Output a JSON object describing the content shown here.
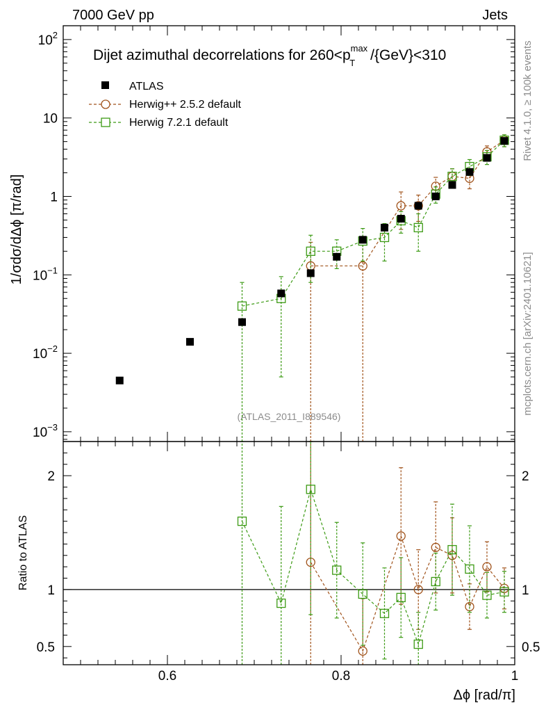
{
  "header": {
    "left": "7000 GeV pp",
    "right": "Jets"
  },
  "side_labels": {
    "rivet": "Rivet 4.1.0, ≥ 100k events",
    "mcplots": "mcplots.cern.ch [arXiv:2401.10621]"
  },
  "colors": {
    "data": "#000000",
    "herwigpp": "#a0521a",
    "herwig7": "#3c9a14",
    "watermark": "#8c8c8c"
  },
  "chart_data": [
    {
      "type": "scatter",
      "panel": "main",
      "title_parts": {
        "prefix": "Dijet azimuthal decorrelations for 260<p",
        "sup": "max",
        "sub": "T",
        "suffix": "/{GeV}<310"
      },
      "ylabel": "1/σdσ/dΔϕ [π/rad]",
      "yscale": "log",
      "ylim": [
        0.00075,
        150
      ],
      "xlim": [
        0.48,
        1.0
      ],
      "yticks": [
        {
          "v": 0.001,
          "label": "10",
          "exp": "−3"
        },
        {
          "v": 0.01,
          "label": "10",
          "exp": "−2"
        },
        {
          "v": 0.1,
          "label": "10",
          "exp": "−1"
        },
        {
          "v": 1,
          "label": "1",
          "exp": ""
        },
        {
          "v": 10,
          "label": "10",
          "exp": ""
        },
        {
          "v": 100,
          "label": "10",
          "exp": "2"
        }
      ],
      "watermark": "(ATLAS_2011_I889546)",
      "legend": [
        "ATLAS",
        "Herwig++ 2.5.2 default",
        "Herwig 7.2.1 default"
      ],
      "legend_position": "top-left",
      "series": [
        {
          "name": "ATLAS",
          "style": "data",
          "color": "#000000",
          "x": [
            0.545,
            0.626,
            0.686,
            0.731,
            0.765,
            0.795,
            0.825,
            0.85,
            0.869,
            0.889,
            0.909,
            0.928,
            0.948,
            0.968,
            0.988
          ],
          "y": [
            0.0045,
            0.014,
            0.025,
            0.058,
            0.105,
            0.17,
            0.28,
            0.4,
            0.52,
            0.76,
            1.0,
            1.4,
            2.05,
            3.1,
            5.1
          ],
          "err": [
            0,
            0,
            0,
            0,
            0,
            0,
            0,
            0,
            0,
            0,
            0,
            0,
            0,
            0,
            0
          ]
        },
        {
          "name": "Herwig++ 2.5.2 default",
          "style": "circle",
          "color": "#a0521a",
          "x": [
            0.765,
            0.825,
            0.869,
            0.889,
            0.909,
            0.928,
            0.948,
            0.968,
            0.988
          ],
          "y": [
            0.13,
            0.13,
            0.76,
            0.76,
            1.35,
            1.8,
            1.7,
            3.7,
            5.2
          ],
          "err": [
            0.13,
            0.13,
            0.38,
            0.28,
            0.4,
            0.45,
            0.45,
            0.7,
            0.9
          ]
        },
        {
          "name": "Herwig 7.2.1 default",
          "style": "square",
          "color": "#3c9a14",
          "x": [
            0.686,
            0.731,
            0.765,
            0.795,
            0.825,
            0.85,
            0.869,
            0.889,
            0.909,
            0.928,
            0.948,
            0.968,
            0.988
          ],
          "y": [
            0.04,
            0.05,
            0.2,
            0.2,
            0.27,
            0.3,
            0.49,
            0.4,
            1.07,
            1.8,
            2.4,
            3.2,
            5.2
          ],
          "err": [
            0.04,
            0.045,
            0.12,
            0.08,
            0.12,
            0.15,
            0.15,
            0.2,
            0.25,
            0.45,
            0.55,
            0.65,
            0.9
          ]
        }
      ]
    },
    {
      "type": "scatter",
      "panel": "ratio",
      "ylabel": "Ratio to ATLAS",
      "xlabel": "Δϕ [rad/π]",
      "ylim": [
        0.34,
        2.3
      ],
      "xlim": [
        0.48,
        1.0
      ],
      "yticks": [
        {
          "v": 0.5,
          "label": "0.5"
        },
        {
          "v": 1,
          "label": "1"
        },
        {
          "v": 2,
          "label": "2"
        }
      ],
      "xticks": [
        {
          "v": 0.6,
          "label": "0.6"
        },
        {
          "v": 0.8,
          "label": "0.8"
        },
        {
          "v": 1.0,
          "label": "1"
        }
      ],
      "series": [
        {
          "name": "Herwig++ 2.5.2 default",
          "style": "circle",
          "color": "#a0521a",
          "x": [
            0.765,
            0.825,
            0.869,
            0.889,
            0.909,
            0.928,
            0.948,
            0.968,
            0.988
          ],
          "y": [
            1.24,
            0.46,
            1.47,
            1.0,
            1.37,
            1.3,
            0.85,
            1.2,
            1.01
          ],
          "err": [
            1.24,
            0.46,
            0.6,
            0.35,
            0.4,
            0.33,
            0.2,
            0.22,
            0.18
          ]
        },
        {
          "name": "Herwig 7.2.1 default",
          "style": "square",
          "color": "#3c9a14",
          "x": [
            0.686,
            0.731,
            0.765,
            0.795,
            0.825,
            0.85,
            0.869,
            0.889,
            0.909,
            0.928,
            0.948,
            0.968,
            0.988
          ],
          "y": [
            1.6,
            0.88,
            1.88,
            1.17,
            0.96,
            0.79,
            0.93,
            0.52,
            1.07,
            1.35,
            1.18,
            0.95,
            0.98
          ],
          "err": [
            1.6,
            0.85,
            1.1,
            0.42,
            0.45,
            0.4,
            0.35,
            0.28,
            0.25,
            0.4,
            0.38,
            0.2,
            0.18
          ]
        }
      ]
    }
  ]
}
